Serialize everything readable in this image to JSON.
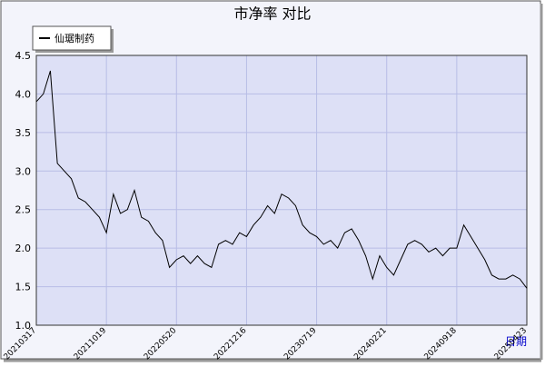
{
  "chart_data": {
    "type": "line",
    "title": "市净率  对比",
    "x_label": "日期",
    "categories": [
      "20210317",
      null,
      null,
      null,
      null,
      null,
      null,
      null,
      null,
      null,
      "20211019",
      null,
      null,
      null,
      null,
      null,
      null,
      null,
      null,
      null,
      "20220520",
      null,
      null,
      null,
      null,
      null,
      null,
      null,
      null,
      null,
      "20221216",
      null,
      null,
      null,
      null,
      null,
      null,
      null,
      null,
      null,
      "20230719",
      null,
      null,
      null,
      null,
      null,
      null,
      null,
      null,
      null,
      "20240221",
      null,
      null,
      null,
      null,
      null,
      null,
      null,
      null,
      null,
      "20240918",
      null,
      null,
      null,
      null,
      null,
      null,
      null,
      null,
      null,
      "20250423"
    ],
    "series": [
      {
        "name": "仙琚制药",
        "color": "#000000",
        "values": [
          3.9,
          4.0,
          4.3,
          3.1,
          3.0,
          2.9,
          2.65,
          2.6,
          2.5,
          2.4,
          2.2,
          2.7,
          2.45,
          2.5,
          2.75,
          2.4,
          2.35,
          2.2,
          2.1,
          1.75,
          1.85,
          1.9,
          1.8,
          1.9,
          1.8,
          1.75,
          2.05,
          2.1,
          2.05,
          2.2,
          2.15,
          2.3,
          2.4,
          2.55,
          2.45,
          2.7,
          2.65,
          2.55,
          2.3,
          2.2,
          2.15,
          2.05,
          2.1,
          2.0,
          2.2,
          2.25,
          2.1,
          1.9,
          1.6,
          1.9,
          1.75,
          1.65,
          1.85,
          2.05,
          2.1,
          2.05,
          1.95,
          2.0,
          1.9,
          2.0,
          2.0,
          2.3,
          2.15,
          2.0,
          1.85,
          1.65,
          1.6,
          1.6,
          1.65,
          1.6,
          1.48
        ]
      }
    ],
    "ylim": [
      1,
      4.5
    ],
    "yticks": [
      {
        "value": 1,
        "label": "1.0"
      },
      1.5,
      {
        "value": 2,
        "label": "2.0"
      },
      2.5,
      {
        "value": 3,
        "label": "3.0"
      },
      3.5,
      {
        "value": 4,
        "label": "4.0"
      },
      4.5
    ],
    "grid": true,
    "legend": "upper left"
  }
}
